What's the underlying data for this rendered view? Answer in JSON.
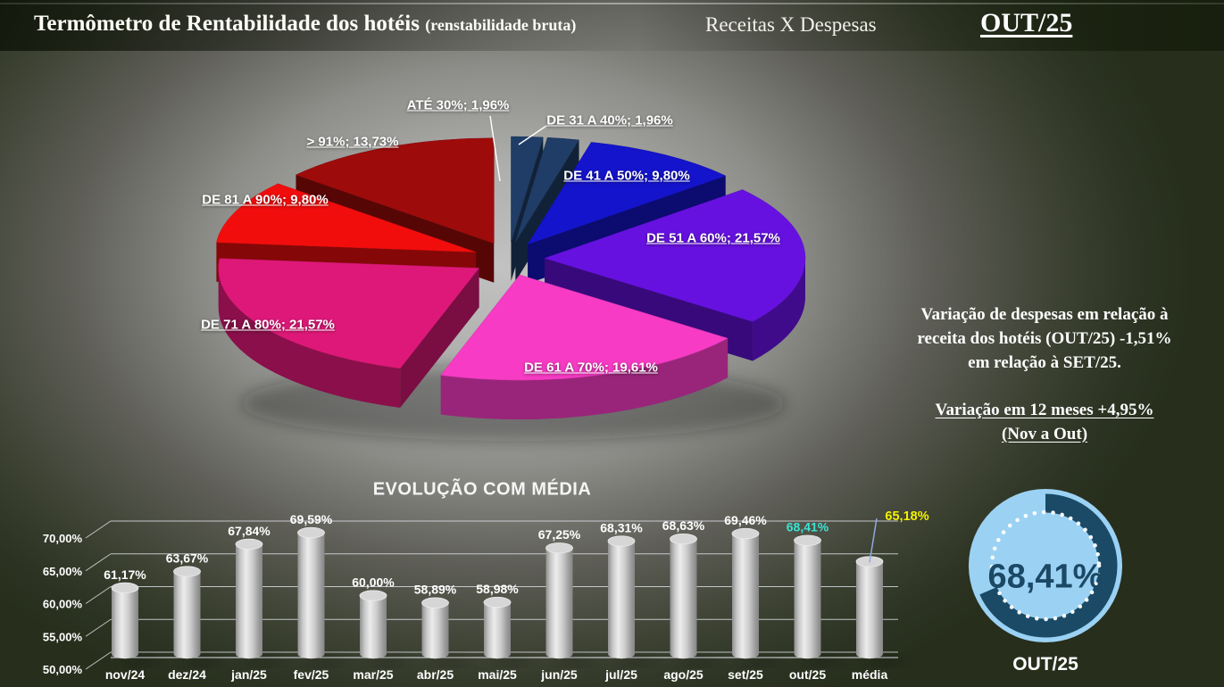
{
  "header": {
    "title": "Termômetro de Rentabilidade dos hotéis",
    "title_suffix": "(renstabilidade bruta)",
    "subtitle": "Receitas X Despesas",
    "period": "OUT/25"
  },
  "side_note": {
    "line1": "Variação de despesas em relação à",
    "line2": "receita dos hotéis (OUT/25) -1,51%",
    "line3": "em relação à SET/25.",
    "variation_line1": "Variação em 12 meses +4,95%",
    "variation_line2": "(Nov a Out)"
  },
  "chart_data": [
    {
      "type": "pie",
      "title": "Receitas X Despesas",
      "legend_position": "data-labels",
      "slices": [
        {
          "label": "ATÉ 30%",
          "value": 1.96,
          "display": "ATÉ 30%; 1,96%",
          "color": "#1F3D66"
        },
        {
          "label": "DE 31 A 40%",
          "value": 1.96,
          "display": "DE 31 A 40%; 1,96%",
          "color": "#1F3D66"
        },
        {
          "label": "DE 41 A 50%",
          "value": 9.8,
          "display": "DE 41 A 50%; 9,80%",
          "color": "#1414CC"
        },
        {
          "label": "DE 51 A 60%",
          "value": 21.57,
          "display": "DE 51 A 60%; 21,57%",
          "color": "#6611E0"
        },
        {
          "label": "DE 61 A 70%",
          "value": 19.61,
          "display": "DE 61 A 70%; 19,61%",
          "color": "#F73BC4"
        },
        {
          "label": "DE 71 A 80%",
          "value": 21.57,
          "display": "DE 71 A 80%; 21,57%",
          "color": "#DE1878"
        },
        {
          "label": "DE 81 A 90%",
          "value": 9.8,
          "display": "DE 81 A 90%; 9,80%",
          "color": "#F20D0D"
        },
        {
          "label": "> 91%",
          "value": 13.73,
          "display": "> 91%; 13,73%",
          "color": "#9E0B0B"
        }
      ]
    },
    {
      "type": "bar",
      "title": "EVOLUÇÃO COM MÉDIA",
      "categories": [
        "nov/24",
        "dez/24",
        "jan/25",
        "fev/25",
        "mar/25",
        "abr/25",
        "mai/25",
        "jun/25",
        "jul/25",
        "ago/25",
        "set/25",
        "out/25",
        "média"
      ],
      "values": [
        61.17,
        63.67,
        67.84,
        69.59,
        60.0,
        58.89,
        58.98,
        67.25,
        68.31,
        68.63,
        69.46,
        68.41,
        65.18
      ],
      "labels": [
        "61,17%",
        "63,67%",
        "67,84%",
        "69,59%",
        "60,00%",
        "58,89%",
        "58,98%",
        "67,25%",
        "68,31%",
        "68,63%",
        "69,46%",
        "68,41%",
        "65,18%"
      ],
      "label_colors": [
        "#FFFFFF",
        "#FFFFFF",
        "#FFFFFF",
        "#FFFFFF",
        "#FFFFFF",
        "#FFFFFF",
        "#FFFFFF",
        "#FFFFFF",
        "#FFFFFF",
        "#FFFFFF",
        "#FFFFFF",
        "#3BE3D2",
        "#F2F200"
      ],
      "yticks": [
        50,
        55,
        60,
        65,
        70
      ],
      "ylabels": [
        "50,00%",
        "55,00%",
        "60,00%",
        "65,00%",
        "70,00%"
      ],
      "ylim": [
        50,
        70
      ],
      "grid": true,
      "bar_color": "#C9C9C9"
    },
    {
      "type": "donut-gauge",
      "value": 68.41,
      "label": "68,41%",
      "period": "OUT/25",
      "ring_color": "#1A4A66",
      "bg_color": "#9BD2F4",
      "dot_color": "#FFFFFF",
      "max": 100
    }
  ]
}
